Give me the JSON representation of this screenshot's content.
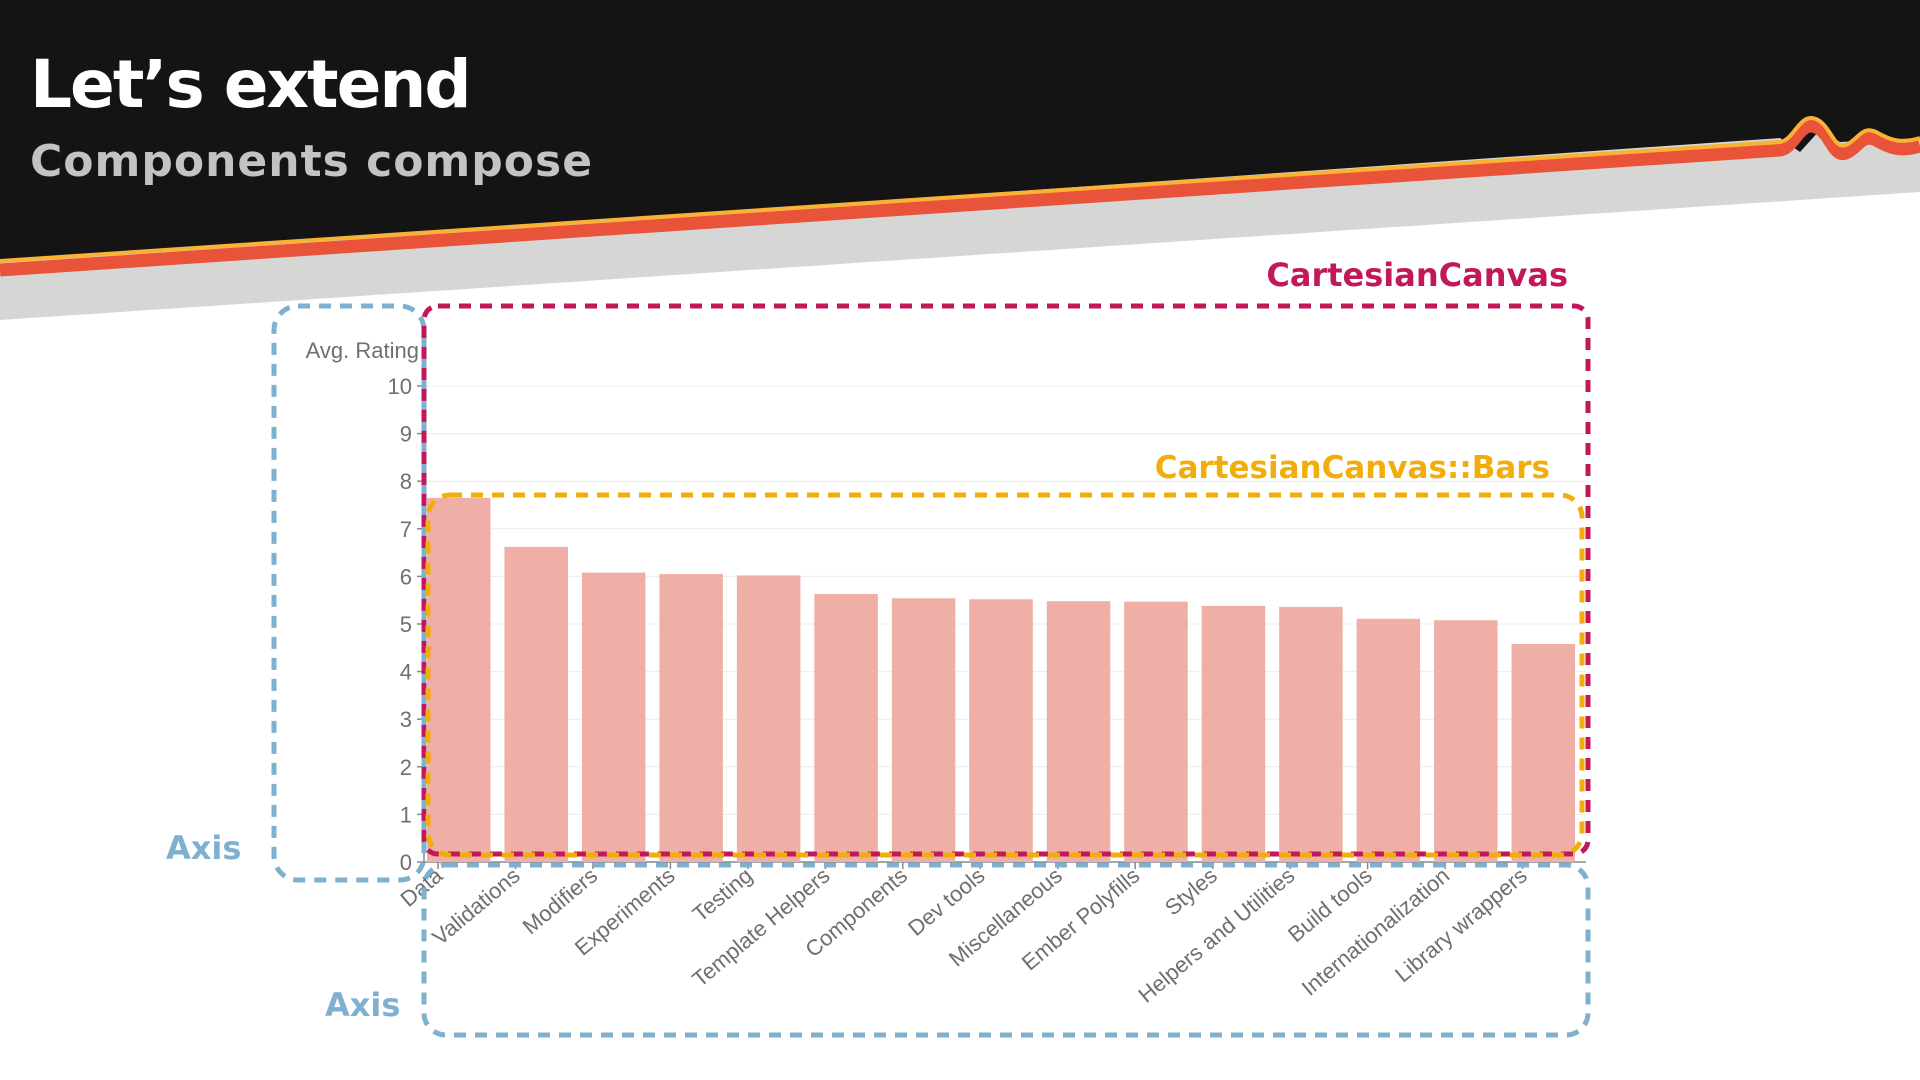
{
  "slide": {
    "title": "Let’s extend",
    "subtitle": "Components compose"
  },
  "annotations": {
    "canvas_label": "CartesianCanvas",
    "bars_label": "CartesianCanvas::Bars",
    "y_axis_label": "Axis",
    "x_axis_label": "Axis"
  },
  "colors": {
    "header_bg": "#151414",
    "stripe_red": "#e8533a",
    "stripe_yellow": "#f9b233",
    "band_gray": "#d6d6d5",
    "bar_fill": "#f0afa6",
    "canvas_outline": "#c2185b",
    "bars_outline": "#f2ad0a",
    "axis_outline": "#7fb0cf"
  },
  "chart_data": {
    "type": "bar",
    "ylabel": "Avg. Rating",
    "ylim": [
      0,
      10
    ],
    "yticks": [
      0,
      1,
      2,
      3,
      4,
      5,
      6,
      7,
      8,
      9,
      10
    ],
    "grid": true,
    "categories": [
      "Data",
      "Validations",
      "Modifiers",
      "Experiments",
      "Testing",
      "Template Helpers",
      "Components",
      "Dev tools",
      "Miscellaneous",
      "Ember Polyfills",
      "Styles",
      "Helpers and Utilities",
      "Build tools",
      "Internationalization",
      "Library wrappers"
    ],
    "values": [
      7.65,
      6.62,
      6.08,
      6.05,
      6.02,
      5.63,
      5.54,
      5.52,
      5.48,
      5.47,
      5.38,
      5.36,
      5.11,
      5.08,
      4.58
    ]
  }
}
